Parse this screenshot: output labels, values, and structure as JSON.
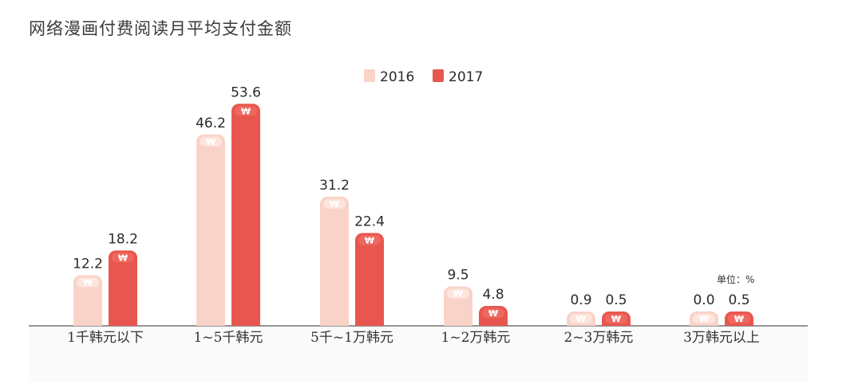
{
  "chart_data": {
    "type": "bar",
    "title": "网络漫画付费阅读月平均支付金额",
    "unit_label": "单位：%",
    "categories": [
      "1千韩元以下",
      "1~5千韩元",
      "5千~1万韩元",
      "1~2万韩元",
      "2~3万韩元",
      "3万韩元以上"
    ],
    "series": [
      {
        "name": "2016",
        "values": [
          12.2,
          46.2,
          31.2,
          9.5,
          0.9,
          0.0
        ],
        "color": "#f9d3c8"
      },
      {
        "name": "2017",
        "values": [
          18.2,
          53.6,
          22.4,
          4.8,
          0.5,
          0.5
        ],
        "color": "#e8574f"
      }
    ],
    "bar_icon": "won-sign-icon",
    "legend_position": "top-center",
    "grid": false,
    "ylim": [
      0,
      60
    ]
  }
}
